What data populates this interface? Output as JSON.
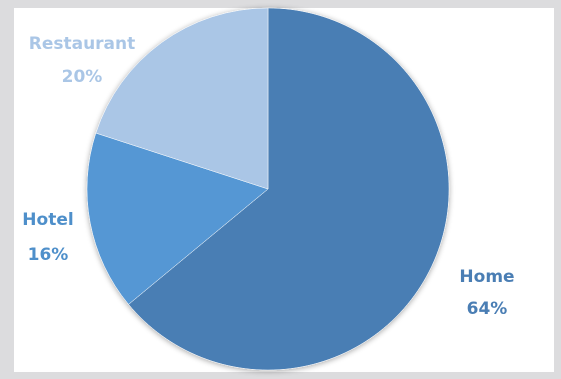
{
  "chart_data": {
    "type": "pie",
    "slices": [
      {
        "label": "Home",
        "value": 64,
        "pct_label": "64%",
        "color": "#4a7eb4",
        "label_color": "#4a7eb4"
      },
      {
        "label": "Hotel",
        "value": 16,
        "pct_label": "16%",
        "color": "#5497d4",
        "label_color": "#4e8fca"
      },
      {
        "label": "Restaurant",
        "value": 20,
        "pct_label": "20%",
        "color": "#aac6e6",
        "label_color": "#aac6e6"
      }
    ],
    "start_angle": "12 o'clock, clockwise",
    "background": "#dcdcde",
    "plot_background": "#ffffff"
  }
}
